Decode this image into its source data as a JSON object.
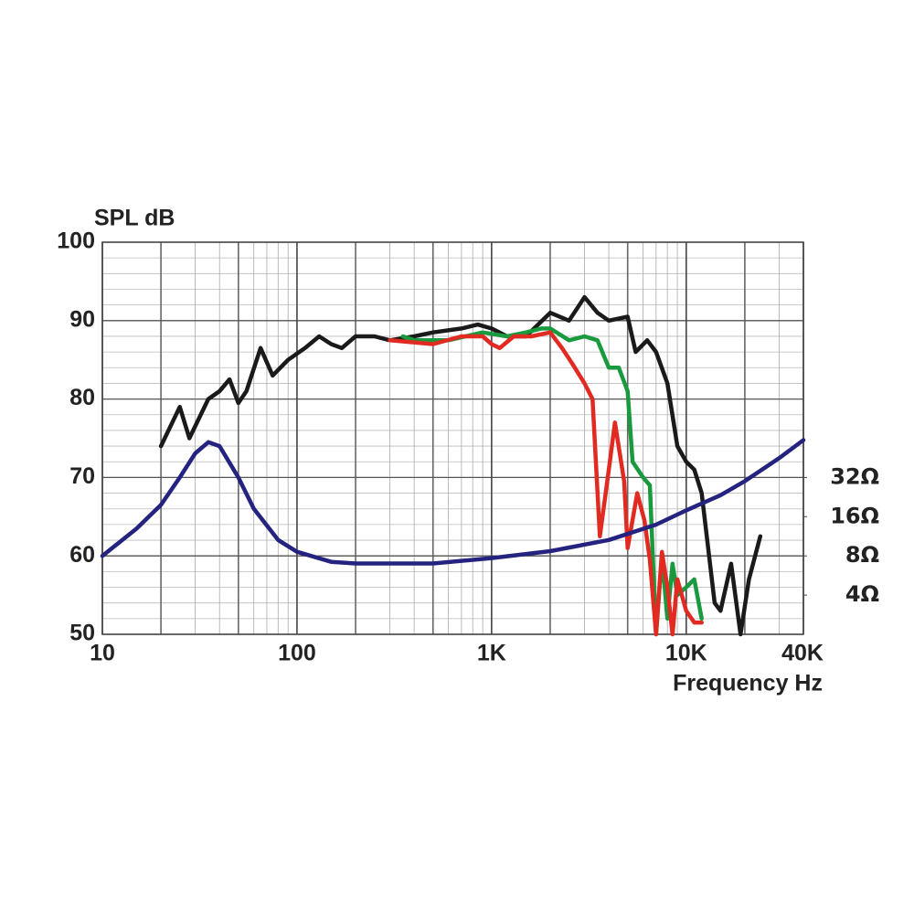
{
  "chart_data": {
    "type": "line",
    "y_label": "SPL dB",
    "x_label": "Frequency Hz",
    "log_x": true,
    "xlim": [
      10,
      40000
    ],
    "xticks": [
      10,
      100,
      {
        "value": 1000,
        "label": "1K"
      },
      {
        "value": 10000,
        "label": "10K"
      },
      {
        "value": 40000,
        "label": "40K"
      }
    ],
    "ylim": [
      50,
      100
    ],
    "yticks": [
      50,
      60,
      70,
      80,
      90,
      100
    ],
    "log_y2": true,
    "y2lim": [
      2,
      2048
    ],
    "y2ticks": [
      {
        "value": 32,
        "label": "32Ω"
      },
      {
        "value": 16,
        "label": "16Ω"
      },
      {
        "value": 8,
        "label": "8Ω"
      },
      {
        "value": 4,
        "label": "4Ω"
      }
    ],
    "grid": true,
    "series": [
      {
        "color": "#1a1a1a",
        "x": [
          20,
          25,
          28,
          35,
          40,
          45,
          50,
          55,
          65,
          75,
          90,
          110,
          130,
          150,
          170,
          200,
          250,
          300,
          400,
          500,
          700,
          850,
          1000,
          1200,
          1500,
          2000,
          2500,
          3000,
          3500,
          4000,
          5000,
          5500,
          6300,
          7000,
          8000,
          9000,
          10000,
          11000,
          12000,
          14000,
          15000,
          17000,
          19000,
          21000,
          24000
        ],
        "values": [
          74,
          79,
          75,
          80,
          81,
          82.5,
          79.5,
          81,
          86.5,
          83,
          85,
          86.5,
          88,
          87,
          86.5,
          88,
          88,
          87.5,
          88,
          88.5,
          89,
          89.5,
          89,
          88,
          88,
          91,
          90,
          93,
          91,
          90,
          90.5,
          86,
          87.5,
          86,
          82,
          74,
          72,
          71,
          68,
          54,
          53,
          59,
          50,
          57,
          62.5
        ]
      },
      {
        "color": "#1a9a3e",
        "x": [
          350,
          400,
          600,
          900,
          1200,
          1500,
          1800,
          2000,
          2500,
          3000,
          3500,
          4000,
          4500,
          5000,
          5300,
          6000,
          6500,
          7000,
          7500,
          8000,
          8500,
          9000,
          10000,
          11000,
          12000
        ],
        "values": [
          88,
          87.5,
          87.5,
          88.5,
          88,
          88.5,
          89,
          89,
          87.5,
          88,
          87.5,
          84,
          84,
          81,
          72,
          70,
          69,
          50,
          60,
          52,
          59,
          55,
          56,
          57,
          52
        ]
      },
      {
        "color": "#e02a22",
        "x": [
          300,
          500,
          700,
          900,
          1000,
          1100,
          1300,
          1600,
          2000,
          2300,
          2600,
          3000,
          3300,
          3600,
          4000,
          4300,
          4800,
          5000,
          5600,
          6100,
          6500,
          7000,
          7500,
          8000,
          8500,
          9000,
          10000,
          11000,
          12000
        ],
        "values": [
          87.5,
          87,
          88,
          88,
          87,
          86.5,
          88,
          88,
          88.5,
          86.5,
          84.5,
          82,
          80,
          62.5,
          71,
          77,
          69.5,
          61,
          68,
          64.5,
          59.5,
          50,
          60.5,
          56,
          50,
          57,
          53,
          51.5,
          51.5
        ]
      },
      {
        "color": "#24237f",
        "axis": "y2",
        "x": [
          10,
          15,
          20,
          25,
          30,
          35,
          40,
          50,
          60,
          80,
          100,
          150,
          200,
          500,
          1000,
          2000,
          4000,
          7000,
          10000,
          15000,
          20000,
          30000,
          40000
        ],
        "values": [
          8,
          13,
          19.7,
          32,
          49,
          59.7,
          55.7,
          32,
          18.4,
          10.6,
          8.6,
          7.2,
          7,
          7,
          7.7,
          8.7,
          10.6,
          13.9,
          17.9,
          23.4,
          30,
          45,
          62
        ]
      }
    ]
  }
}
